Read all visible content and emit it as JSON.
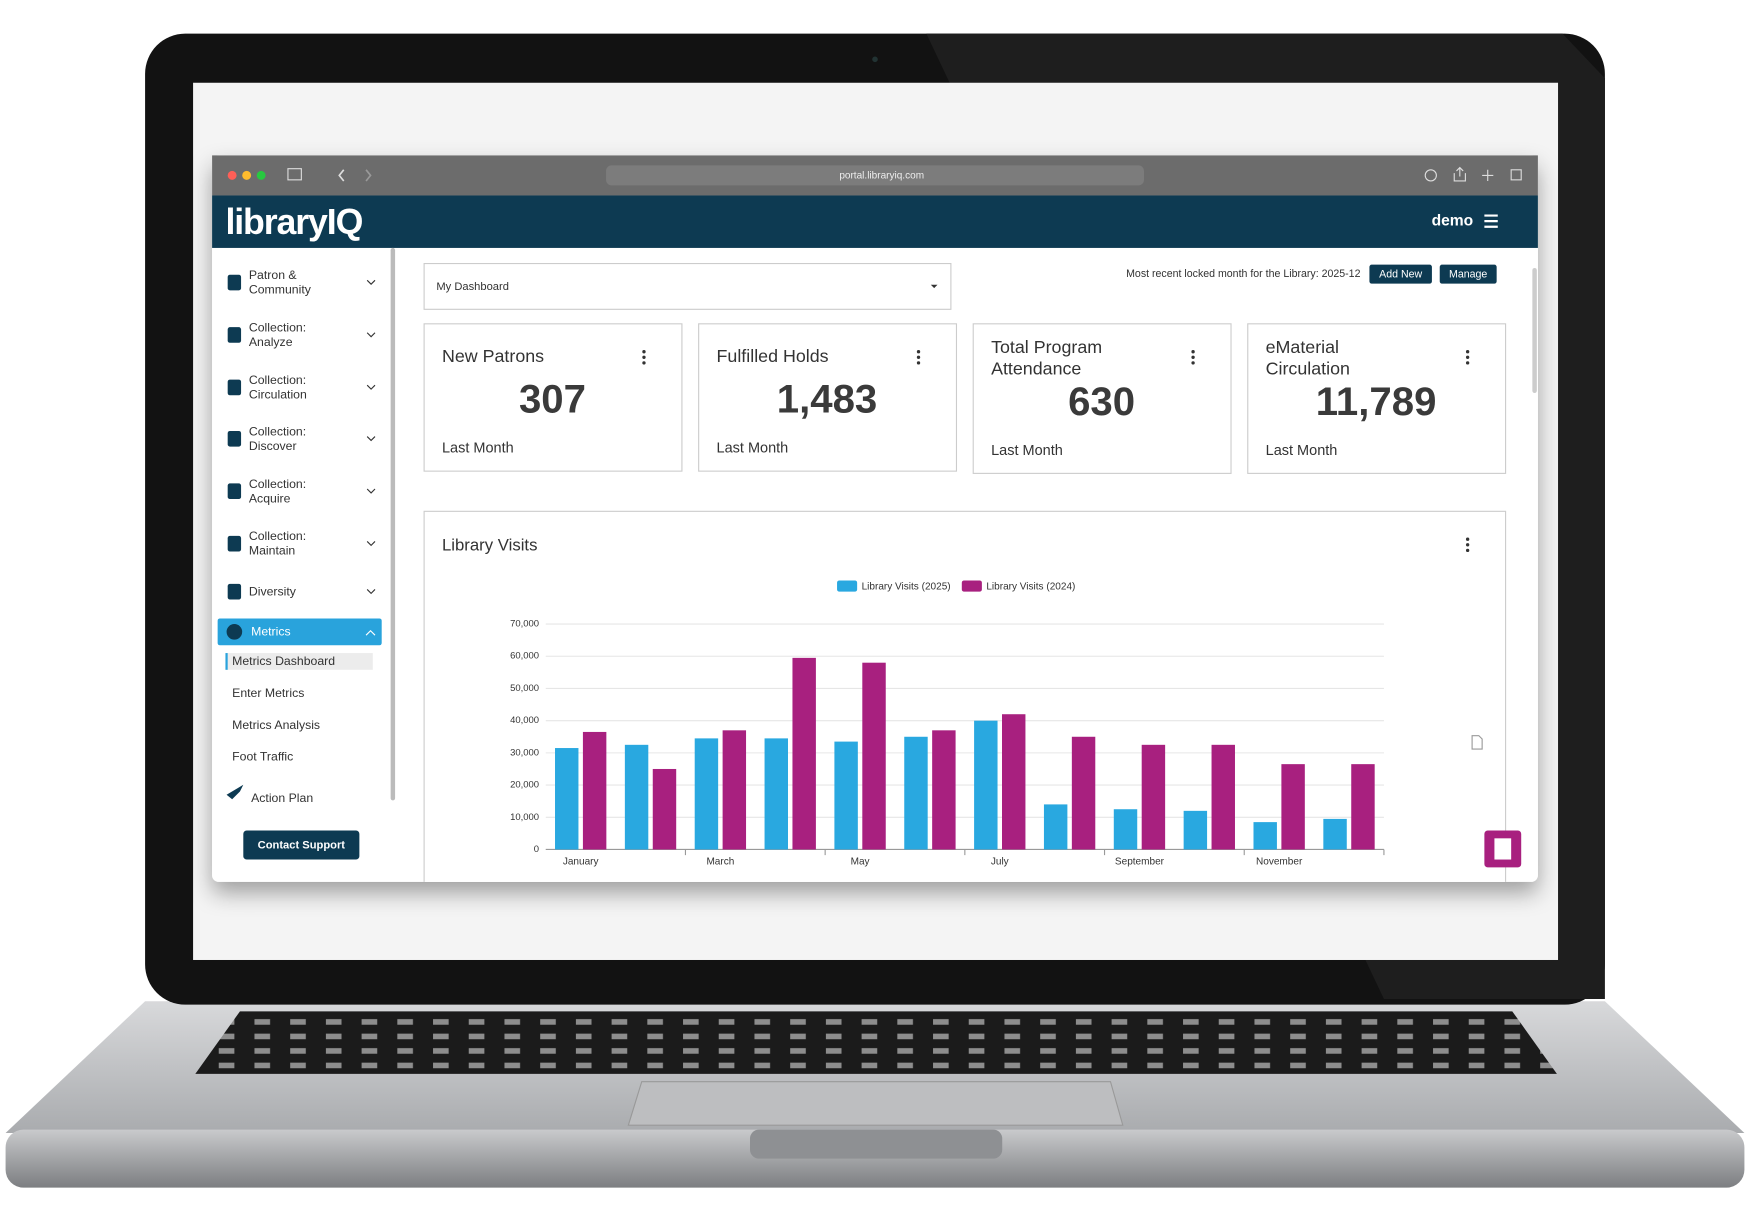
{
  "browser": {
    "url": "portal.libraryiq.com"
  },
  "header": {
    "logo": "libraryIQ",
    "user": "demo"
  },
  "sidebar": {
    "items": [
      [
        "Patron &",
        "Community"
      ],
      [
        "Collection:",
        "Analyze"
      ],
      [
        "Collection:",
        "Circulation"
      ],
      [
        "Collection:",
        "Discover"
      ],
      [
        "Collection:",
        "Acquire"
      ],
      [
        "Collection:",
        "Maintain"
      ],
      [
        "Diversity"
      ]
    ],
    "active_item": {
      "label": "Metrics",
      "subitems": [
        "Metrics Dashboard",
        "Enter Metrics",
        "Metrics Analysis",
        "Foot Traffic"
      ]
    },
    "last_item": "Action Plan",
    "support_button": "Contact Support"
  },
  "toolbar": {
    "dropdown": "My Dashboard",
    "locked_note": "Most recent locked month for the Library: 2025-12",
    "buttons": [
      "Add New",
      "Manage"
    ]
  },
  "cards": [
    {
      "title": [
        "New Patrons"
      ],
      "value": "307",
      "subtitle": "Last Month"
    },
    {
      "title": [
        "Fulfilled Holds"
      ],
      "value": "1,483",
      "subtitle": "Last Month"
    },
    {
      "title": [
        "Total Program",
        "Attendance"
      ],
      "value": "630",
      "subtitle": "Last Month"
    },
    {
      "title": [
        "eMaterial",
        "Circulation"
      ],
      "value": "11,789",
      "subtitle": "Last Month"
    }
  ],
  "chart": {
    "type": "bar",
    "title": "Library Visits",
    "categories": [
      "January",
      null,
      "March",
      null,
      "May",
      null,
      "July",
      null,
      "September",
      null,
      "November",
      null
    ],
    "series": [
      {
        "name": "Library Visits (2025)",
        "color": "#29a8e0",
        "values": [
          31500,
          32500,
          34500,
          34500,
          33500,
          35000,
          40000,
          14000,
          12500,
          12000,
          8500,
          9500
        ]
      },
      {
        "name": "Library Visits (2024)",
        "color": "#a8207f",
        "values": [
          36500,
          25000,
          37000,
          59500,
          58000,
          37000,
          42000,
          35000,
          32500,
          32500,
          26500,
          26500
        ]
      }
    ],
    "ylim": [
      0,
      70000
    ],
    "yticks": [
      0,
      {
        "value": 10000,
        "label": "10,000"
      },
      {
        "value": 20000,
        "label": "20,000"
      },
      {
        "value": 30000,
        "label": "30,000"
      },
      {
        "value": 40000,
        "label": "40,000"
      },
      {
        "value": 50000,
        "label": "50,000"
      },
      {
        "value": 60000,
        "label": "60,000"
      },
      {
        "value": 70000,
        "label": "70,000"
      }
    ],
    "grid": true,
    "legend": "top"
  }
}
